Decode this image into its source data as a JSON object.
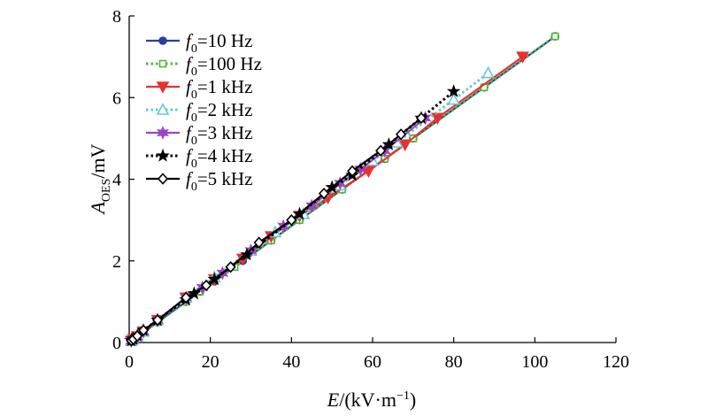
{
  "chart_data": {
    "type": "line",
    "title": "",
    "xlabel": {
      "italic": "E",
      "rest": "/(kV·m",
      "sup": "−1",
      "close": ")"
    },
    "ylabel": {
      "italic": "A",
      "sub": "OES",
      "rest": "/mV"
    },
    "xlim": [
      0,
      120
    ],
    "ylim": [
      0,
      8
    ],
    "xticks": [
      "0",
      "20",
      "40",
      "60",
      "80",
      "100",
      "120"
    ],
    "yticks": [
      "0",
      "2",
      "4",
      "6",
      "8"
    ],
    "grid": false,
    "legend_position": "top-left",
    "series": [
      {
        "name": "f0=10 Hz",
        "name_italic": "f",
        "name_sub": "0",
        "name_rest": "=10 Hz",
        "color": "#2c3e9e",
        "dash": "solid",
        "marker": "circle",
        "fill": true,
        "points": [
          [
            0.5,
            0.04
          ],
          [
            1,
            0.07
          ],
          [
            2,
            0.14
          ],
          [
            3.5,
            0.25
          ],
          [
            7,
            0.5
          ],
          [
            14,
            1.0
          ],
          [
            17.5,
            1.25
          ],
          [
            21,
            1.5
          ],
          [
            28,
            2.0
          ],
          [
            35,
            2.5
          ],
          [
            42,
            3.0
          ],
          [
            52.5,
            3.75
          ],
          [
            63,
            4.5
          ],
          [
            70,
            5.0
          ],
          [
            87.5,
            6.25
          ],
          [
            105,
            7.5
          ]
        ]
      },
      {
        "name": "f0=100 Hz",
        "name_italic": "f",
        "name_sub": "0",
        "name_rest": "=100 Hz",
        "color": "#4fb83a",
        "dash": "dot",
        "marker": "square",
        "fill": false,
        "points": [
          [
            0.5,
            0.04
          ],
          [
            1,
            0.07
          ],
          [
            2,
            0.14
          ],
          [
            3.5,
            0.25
          ],
          [
            7,
            0.5
          ],
          [
            14,
            1.0
          ],
          [
            17.5,
            1.25
          ],
          [
            26,
            1.85
          ],
          [
            35,
            2.5
          ],
          [
            42,
            3.0
          ],
          [
            52.5,
            3.75
          ],
          [
            63,
            4.5
          ],
          [
            70,
            5.0
          ],
          [
            87.5,
            6.25
          ],
          [
            105,
            7.5
          ]
        ]
      },
      {
        "name": "f0=1 kHz",
        "name_italic": "f",
        "name_sub": "0",
        "name_rest": "=1 kHz",
        "color": "#e8312f",
        "dash": "solid",
        "marker": "triangle-down",
        "fill": true,
        "points": [
          [
            0.5,
            0.04
          ],
          [
            1,
            0.08
          ],
          [
            2,
            0.15
          ],
          [
            3.5,
            0.27
          ],
          [
            7,
            0.55
          ],
          [
            14,
            1.1
          ],
          [
            21,
            1.55
          ],
          [
            28,
            2.05
          ],
          [
            35,
            2.6
          ],
          [
            42,
            3.1
          ],
          [
            49,
            3.55
          ],
          [
            59,
            4.2
          ],
          [
            68,
            4.85
          ],
          [
            76,
            5.5
          ],
          [
            97,
            7.0
          ]
        ]
      },
      {
        "name": "f0=2 kHz",
        "name_italic": "f",
        "name_sub": "0",
        "name_rest": "=2 kHz",
        "color": "#67c9c9",
        "dash": "dot",
        "marker": "triangle-up",
        "fill": false,
        "points": [
          [
            0.5,
            0.04
          ],
          [
            1,
            0.08
          ],
          [
            2,
            0.15
          ],
          [
            3.5,
            0.27
          ],
          [
            7,
            0.55
          ],
          [
            14,
            1.1
          ],
          [
            21,
            1.6
          ],
          [
            30,
            2.25
          ],
          [
            36,
            2.7
          ],
          [
            43,
            3.15
          ],
          [
            52,
            3.85
          ],
          [
            60,
            4.45
          ],
          [
            66,
            4.9
          ],
          [
            80,
            5.95
          ],
          [
            88.5,
            6.6
          ]
        ]
      },
      {
        "name": "f0=3 kHz",
        "name_italic": "f",
        "name_sub": "0",
        "name_rest": "=3 kHz",
        "color": "#9a45c2",
        "dash": "solid",
        "marker": "star6",
        "fill": true,
        "points": [
          [
            0.5,
            0.04
          ],
          [
            1,
            0.08
          ],
          [
            2,
            0.15
          ],
          [
            3.5,
            0.27
          ],
          [
            7,
            0.55
          ],
          [
            14,
            1.1
          ],
          [
            18,
            1.35
          ],
          [
            23,
            1.7
          ],
          [
            30,
            2.25
          ],
          [
            38,
            2.85
          ],
          [
            45,
            3.35
          ],
          [
            52,
            3.9
          ],
          [
            57,
            4.25
          ],
          [
            63,
            4.7
          ],
          [
            73,
            5.5
          ]
        ]
      },
      {
        "name": "f0=4 kHz",
        "name_italic": "f",
        "name_sub": "0",
        "name_rest": "=4 kHz",
        "color": "#000000",
        "dash": "dot",
        "marker": "star5",
        "fill": true,
        "points": [
          [
            0.5,
            0.05
          ],
          [
            1,
            0.09
          ],
          [
            2,
            0.17
          ],
          [
            3.5,
            0.3
          ],
          [
            7,
            0.55
          ],
          [
            14,
            1.05
          ],
          [
            16,
            1.2
          ],
          [
            21,
            1.55
          ],
          [
            29,
            2.15
          ],
          [
            42,
            3.15
          ],
          [
            50,
            3.8
          ],
          [
            55,
            4.1
          ],
          [
            64,
            4.85
          ],
          [
            72,
            5.5
          ],
          [
            80,
            6.15
          ]
        ]
      },
      {
        "name": "f0=5 kHz",
        "name_italic": "f",
        "name_sub": "0",
        "name_rest": "=5 kHz",
        "color": "#000000",
        "dash": "solid",
        "marker": "diamond",
        "fill": false,
        "points": [
          [
            0.5,
            0.05
          ],
          [
            1,
            0.08
          ],
          [
            2,
            0.16
          ],
          [
            3.5,
            0.3
          ],
          [
            7,
            0.55
          ],
          [
            14,
            1.1
          ],
          [
            19,
            1.4
          ],
          [
            25,
            1.85
          ],
          [
            32,
            2.45
          ],
          [
            40,
            3.0
          ],
          [
            48,
            3.65
          ],
          [
            55,
            4.2
          ],
          [
            62,
            4.7
          ],
          [
            67,
            5.1
          ],
          [
            72,
            5.5
          ]
        ]
      }
    ]
  }
}
